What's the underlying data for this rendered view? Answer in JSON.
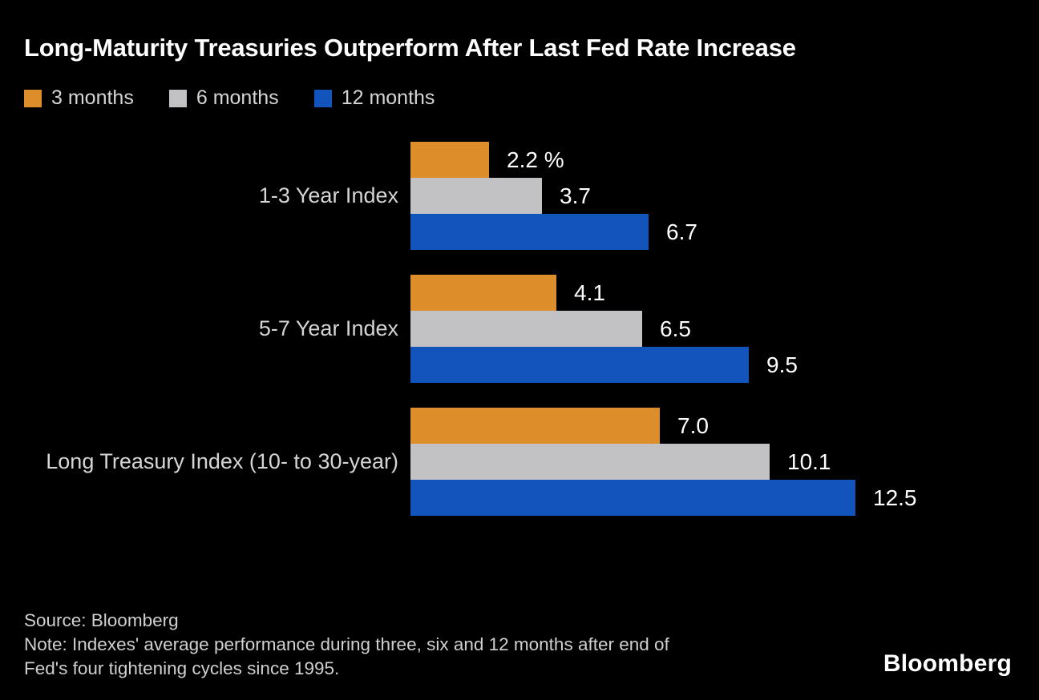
{
  "title": "Long-Maturity Treasuries Outperform After Last Fed Rate Increase",
  "colors": {
    "background": "#000000",
    "title_text": "#ffffff",
    "label_text": "#d5d5d5",
    "value_text": "#ffffff",
    "footer_text": "#d0d0d0",
    "orange": "#DD8D29",
    "gray": "#C2C2C4",
    "blue": "#1254BC"
  },
  "chart_data": {
    "type": "bar",
    "orientation": "horizontal",
    "title": "Long-Maturity Treasuries Outperform After Last Fed Rate Increase",
    "categories": [
      "1-3 Year Index",
      "5-7 Year Index",
      "Long Treasury Index (10- to 30-year)"
    ],
    "series": [
      {
        "name": "3 months",
        "color": "#DD8D29",
        "values": [
          2.2,
          4.1,
          7.0
        ],
        "labels": [
          "2.2 %",
          "4.1",
          "7.0"
        ]
      },
      {
        "name": "6 months",
        "color": "#C2C2C4",
        "values": [
          3.7,
          6.5,
          10.1
        ],
        "labels": [
          "3.7",
          "6.5",
          "10.1"
        ]
      },
      {
        "name": "12 months",
        "color": "#1254BC",
        "values": [
          6.7,
          9.5,
          12.5
        ],
        "labels": [
          "6.7",
          "9.5",
          "12.5"
        ]
      }
    ],
    "value_unit": "%",
    "xlim": [
      0,
      12.5
    ],
    "grid": false,
    "legend_position": "top-left",
    "value_labels_shown": true
  },
  "footer": {
    "source": "Source: Bloomberg",
    "note_line1": "Note: Indexes' average performance during three, six and 12 months after end of",
    "note_line2": "Fed's four tightening cycles since 1995.",
    "brand": "Bloomberg"
  }
}
